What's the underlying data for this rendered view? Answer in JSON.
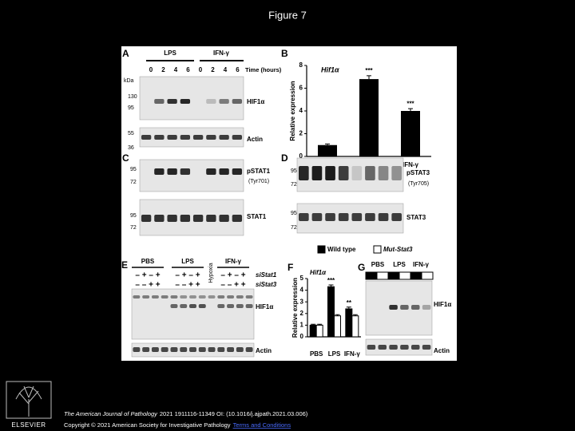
{
  "title": "Figure 7",
  "panels": {
    "A": {
      "label": "A",
      "groups": [
        "LPS",
        "IFN-γ"
      ],
      "times": [
        "0",
        "2",
        "4",
        "6",
        "0",
        "2",
        "4",
        "6"
      ],
      "time_label": "Time (hours)",
      "kda_label": "kDa",
      "markers": [
        "130",
        "95",
        "55",
        "36"
      ],
      "blots": [
        "HIF1α",
        "Actin"
      ]
    },
    "B": {
      "label": "B",
      "chart": {
        "type": "bar",
        "title": "Hif1α",
        "y_label": "Relative expression",
        "categories": [
          "PBS",
          "LPS",
          "IFN-γ"
        ],
        "values": [
          1,
          6.8,
          4
        ],
        "errors": [
          0.1,
          0.3,
          0.2
        ],
        "annotations": [
          null,
          "***",
          "***"
        ],
        "color": "#000000",
        "ylim": [
          0,
          8
        ],
        "yticks": [
          0,
          2,
          4,
          6,
          8
        ]
      }
    },
    "C": {
      "label": "C",
      "markers_top": [
        "95",
        "72"
      ],
      "blot_top": "pSTAT1",
      "site": "(Tyr701)",
      "markers_bottom": [
        "95",
        "72"
      ],
      "blot_bottom": "STAT1"
    },
    "D": {
      "label": "D",
      "markers_top": [
        "95",
        "72"
      ],
      "blot_top": "pSTAT3",
      "site": "(Tyr705)",
      "markers_bottom": [
        "95",
        "72"
      ],
      "blot_bottom": "STAT3"
    },
    "legend": {
      "items": [
        {
          "name": "Wild type",
          "color": "#000000"
        },
        {
          "name": "Mut-Stat3",
          "color": "#ffffff"
        }
      ]
    },
    "E": {
      "label": "E",
      "groups": [
        "PBS",
        "LPS",
        "IFN-γ"
      ],
      "hypoxia": "Hypoxia",
      "si_rows": [
        {
          "name": "siStat1",
          "signs": [
            "– + – +",
            "– + – +",
            "– + – +"
          ]
        },
        {
          "name": "siStat3",
          "signs": [
            "– – + +",
            "– – + +",
            "– – + +"
          ]
        }
      ],
      "blots": [
        "HIF1α",
        "Actin"
      ]
    },
    "F": {
      "label": "F",
      "chart": {
        "type": "grouped-bar",
        "title": "Hif1α",
        "y_label": "Relative expression",
        "categories": [
          "PBS",
          "LPS",
          "IFN-γ"
        ],
        "series": [
          {
            "name": "Wild type",
            "color": "#000000",
            "values": [
              1,
              4.3,
              2.4
            ],
            "errors": [
              0.08,
              0.15,
              0.15
            ],
            "annotations": [
              null,
              "***",
              "**"
            ]
          },
          {
            "name": "Mut-Stat3",
            "color": "#ffffff",
            "values": [
              1,
              1.8,
              1.8
            ],
            "errors": [
              0.08,
              0.1,
              0.1
            ]
          }
        ],
        "ylim": [
          0,
          5
        ],
        "yticks": [
          0,
          1,
          2,
          3,
          4,
          5
        ]
      }
    },
    "G": {
      "label": "G",
      "groups": [
        "PBS",
        "LPS",
        "IFN-γ"
      ],
      "blots": [
        "HIF1α",
        "Actin"
      ]
    }
  },
  "footer": {
    "journal": "The American Journal of Pathology",
    "citation": "2021 1911116-11349 OI: (10.1016/j.ajpath.2021.03.006)",
    "copyright": "Copyright © 2021 American Society for Investigative Pathology",
    "link": "Terms and Conditions"
  },
  "publisher": "ELSEVIER"
}
